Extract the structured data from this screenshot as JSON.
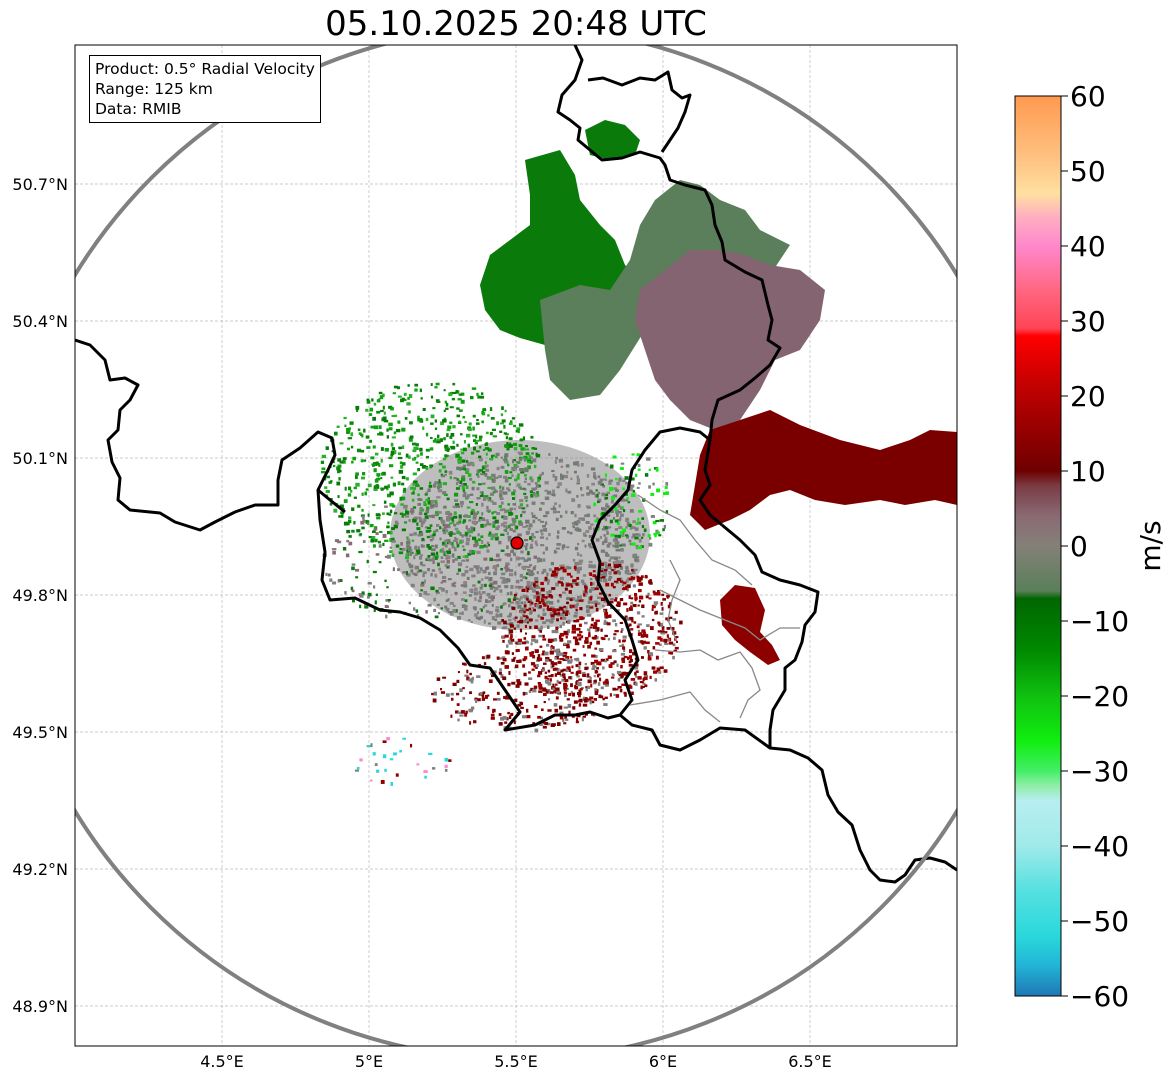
{
  "title": "05.10.2025 20:48 UTC",
  "info": {
    "product": "Product: 0.5° Radial Velocity",
    "range": "Range: 125 km",
    "data": "Data: RMIB"
  },
  "map": {
    "lon_range": [
      4.0,
      7.0
    ],
    "lat_range": [
      48.8,
      51.0
    ],
    "x_ticks": [
      {
        "value": 4.5,
        "label": "4.5°E"
      },
      {
        "value": 5.0,
        "label": "5°E"
      },
      {
        "value": 5.5,
        "label": "5.5°E"
      },
      {
        "value": 6.0,
        "label": "6°E"
      },
      {
        "value": 6.5,
        "label": "6.5°E"
      }
    ],
    "y_ticks": [
      {
        "value": 50.7,
        "label": "50.7°N"
      },
      {
        "value": 50.4,
        "label": "50.4°N"
      },
      {
        "value": 50.1,
        "label": "50.1°N"
      },
      {
        "value": 49.8,
        "label": "49.8°N"
      },
      {
        "value": 49.5,
        "label": "49.5°N"
      },
      {
        "value": 49.2,
        "label": "49.2°N"
      },
      {
        "value": 48.9,
        "label": "48.9°N"
      }
    ],
    "grid": true,
    "radar_site": {
      "lon": 5.505,
      "lat": 49.914
    },
    "range_ring_km": 125
  },
  "colorbar": {
    "unit": "m/s",
    "min": -60,
    "max": 60,
    "ticks": [
      {
        "value": 60,
        "label": "60"
      },
      {
        "value": 50,
        "label": "50"
      },
      {
        "value": 40,
        "label": "40"
      },
      {
        "value": 30,
        "label": "30"
      },
      {
        "value": 20,
        "label": "20"
      },
      {
        "value": 10,
        "label": "10"
      },
      {
        "value": 0,
        "label": "0"
      },
      {
        "value": -10,
        "label": "−10"
      },
      {
        "value": -20,
        "label": "−20"
      },
      {
        "value": -30,
        "label": "−30"
      },
      {
        "value": -40,
        "label": "−40"
      },
      {
        "value": -50,
        "label": "−50"
      },
      {
        "value": -60,
        "label": "−60"
      }
    ],
    "stops": [
      {
        "value": -60,
        "color": "#1f77b4"
      },
      {
        "value": -56,
        "color": "#22b3d6"
      },
      {
        "value": -52,
        "color": "#2ad8dc"
      },
      {
        "value": -46,
        "color": "#55e0e0"
      },
      {
        "value": -40,
        "color": "#a0eaea"
      },
      {
        "value": -34,
        "color": "#b8eef0"
      },
      {
        "value": -32,
        "color": "#90eea8"
      },
      {
        "value": -30,
        "color": "#44ee66"
      },
      {
        "value": -26,
        "color": "#10ee10"
      },
      {
        "value": -20,
        "color": "#10c010"
      },
      {
        "value": -14,
        "color": "#008a00"
      },
      {
        "value": -7,
        "color": "#006600"
      },
      {
        "value": -6,
        "color": "#5a7f5a"
      },
      {
        "value": 0,
        "color": "#848078"
      },
      {
        "value": 4,
        "color": "#8a6a74"
      },
      {
        "value": 8,
        "color": "#7a3c44"
      },
      {
        "value": 10,
        "color": "#6e0000"
      },
      {
        "value": 16,
        "color": "#9a0000"
      },
      {
        "value": 22,
        "color": "#c80000"
      },
      {
        "value": 28,
        "color": "#ff0000"
      },
      {
        "value": 29,
        "color": "#ff4455"
      },
      {
        "value": 34,
        "color": "#ff6680"
      },
      {
        "value": 40,
        "color": "#ff88cc"
      },
      {
        "value": 44,
        "color": "#ffb0c0"
      },
      {
        "value": 47,
        "color": "#ffe0a0"
      },
      {
        "value": 52,
        "color": "#ffc080"
      },
      {
        "value": 60,
        "color": "#ff9a50"
      }
    ]
  },
  "velocity_regions": [
    {
      "name": "inbound-cell-north",
      "value": -10,
      "color": "#0a7a0a"
    },
    {
      "name": "inbound-weak-north",
      "value": -3,
      "color": "#5a7f5a"
    },
    {
      "name": "near-zero-east",
      "value": 3,
      "color": "#846470"
    },
    {
      "name": "outbound-east-band",
      "value": 11,
      "color": "#7a0000"
    },
    {
      "name": "outbound-south",
      "value": 14,
      "color": "#8c0000"
    },
    {
      "name": "ground-clutter",
      "value": 0,
      "color": "#808080"
    }
  ]
}
